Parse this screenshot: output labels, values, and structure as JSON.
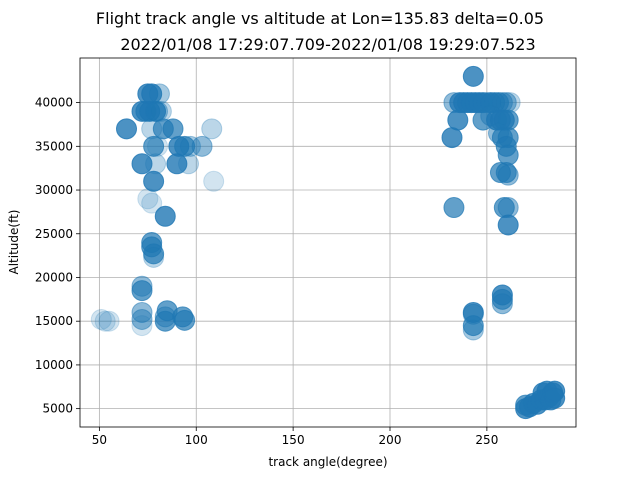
{
  "chart_data": {
    "type": "scatter",
    "title": "Flight track angle vs altitude at Lon=135.83 delta=0.05",
    "subtitle": "2022/01/08 17:29:07.709-2022/01/08 19:29:07.523",
    "xlabel": "track angle(degree)",
    "ylabel": "Altitude(ft)",
    "xlim": [
      40,
      296
    ],
    "ylim": [
      2900,
      45100
    ],
    "x_ticks": [
      50,
      100,
      150,
      200,
      250
    ],
    "y_ticks": [
      5000,
      10000,
      15000,
      20000,
      25000,
      30000,
      35000,
      40000
    ],
    "grid": true,
    "marker_color": "#1f77b4",
    "points": [
      {
        "x": 51,
        "y": 15200,
        "a": 0.2
      },
      {
        "x": 53,
        "y": 15000,
        "a": 0.2
      },
      {
        "x": 55,
        "y": 15000,
        "a": 0.2
      },
      {
        "x": 64,
        "y": 37000,
        "a": 0.8
      },
      {
        "x": 72,
        "y": 39000,
        "a": 0.8
      },
      {
        "x": 74,
        "y": 39000,
        "a": 0.7
      },
      {
        "x": 75,
        "y": 41000,
        "a": 0.8
      },
      {
        "x": 77,
        "y": 41000,
        "a": 0.8
      },
      {
        "x": 76,
        "y": 39000,
        "a": 0.8
      },
      {
        "x": 79,
        "y": 39000,
        "a": 0.8
      },
      {
        "x": 81,
        "y": 41000,
        "a": 0.4
      },
      {
        "x": 80,
        "y": 39000,
        "a": 0.4
      },
      {
        "x": 82,
        "y": 39000,
        "a": 0.3
      },
      {
        "x": 83,
        "y": 37000,
        "a": 0.7
      },
      {
        "x": 77,
        "y": 37000,
        "a": 0.3
      },
      {
        "x": 78,
        "y": 35000,
        "a": 0.7
      },
      {
        "x": 80,
        "y": 35000,
        "a": 0.2
      },
      {
        "x": 79,
        "y": 33000,
        "a": 0.3
      },
      {
        "x": 72,
        "y": 33000,
        "a": 0.8
      },
      {
        "x": 88,
        "y": 37000,
        "a": 0.7
      },
      {
        "x": 91,
        "y": 35000,
        "a": 0.8
      },
      {
        "x": 94,
        "y": 35000,
        "a": 0.7
      },
      {
        "x": 96,
        "y": 33000,
        "a": 0.3
      },
      {
        "x": 97,
        "y": 35000,
        "a": 0.4
      },
      {
        "x": 90,
        "y": 33000,
        "a": 0.8
      },
      {
        "x": 103,
        "y": 35000,
        "a": 0.5
      },
      {
        "x": 108,
        "y": 37000,
        "a": 0.3
      },
      {
        "x": 109,
        "y": 31000,
        "a": 0.2
      },
      {
        "x": 78,
        "y": 31000,
        "a": 0.8
      },
      {
        "x": 75,
        "y": 29000,
        "a": 0.2
      },
      {
        "x": 77,
        "y": 28500,
        "a": 0.2
      },
      {
        "x": 84,
        "y": 27000,
        "a": 0.8
      },
      {
        "x": 77,
        "y": 24000,
        "a": 0.7
      },
      {
        "x": 77,
        "y": 23500,
        "a": 0.7
      },
      {
        "x": 78,
        "y": 22700,
        "a": 0.7
      },
      {
        "x": 78,
        "y": 22300,
        "a": 0.3
      },
      {
        "x": 72,
        "y": 19000,
        "a": 0.5
      },
      {
        "x": 72,
        "y": 18500,
        "a": 0.7
      },
      {
        "x": 72,
        "y": 16000,
        "a": 0.5
      },
      {
        "x": 72,
        "y": 15200,
        "a": 0.5
      },
      {
        "x": 72,
        "y": 14500,
        "a": 0.2
      },
      {
        "x": 84,
        "y": 15000,
        "a": 0.7
      },
      {
        "x": 84,
        "y": 15500,
        "a": 0.5
      },
      {
        "x": 85,
        "y": 16200,
        "a": 0.7
      },
      {
        "x": 93,
        "y": 15500,
        "a": 0.7
      },
      {
        "x": 94,
        "y": 15100,
        "a": 0.7
      },
      {
        "x": 232,
        "y": 36000,
        "a": 0.8
      },
      {
        "x": 233,
        "y": 28000,
        "a": 0.7
      },
      {
        "x": 233,
        "y": 40000,
        "a": 0.5
      },
      {
        "x": 235,
        "y": 38000,
        "a": 0.8
      },
      {
        "x": 236,
        "y": 40000,
        "a": 0.8
      },
      {
        "x": 238,
        "y": 40000,
        "a": 0.8
      },
      {
        "x": 240,
        "y": 40000,
        "a": 0.8
      },
      {
        "x": 242,
        "y": 40000,
        "a": 0.8
      },
      {
        "x": 243,
        "y": 43000,
        "a": 0.8
      },
      {
        "x": 244,
        "y": 40000,
        "a": 0.8
      },
      {
        "x": 246,
        "y": 40000,
        "a": 0.8
      },
      {
        "x": 248,
        "y": 40000,
        "a": 0.8
      },
      {
        "x": 250,
        "y": 40000,
        "a": 0.5
      },
      {
        "x": 252,
        "y": 40000,
        "a": 0.8
      },
      {
        "x": 254,
        "y": 40000,
        "a": 0.7
      },
      {
        "x": 256,
        "y": 40000,
        "a": 0.7
      },
      {
        "x": 258,
        "y": 40000,
        "a": 0.5
      },
      {
        "x": 260,
        "y": 40000,
        "a": 0.5
      },
      {
        "x": 262,
        "y": 40000,
        "a": 0.3
      },
      {
        "x": 248,
        "y": 38000,
        "a": 0.7
      },
      {
        "x": 252,
        "y": 38500,
        "a": 0.5
      },
      {
        "x": 255,
        "y": 38000,
        "a": 0.8
      },
      {
        "x": 257,
        "y": 38000,
        "a": 0.8
      },
      {
        "x": 259,
        "y": 38000,
        "a": 0.8
      },
      {
        "x": 261,
        "y": 38000,
        "a": 0.7
      },
      {
        "x": 256,
        "y": 36500,
        "a": 0.5
      },
      {
        "x": 258,
        "y": 36000,
        "a": 0.7
      },
      {
        "x": 261,
        "y": 36000,
        "a": 0.7
      },
      {
        "x": 260,
        "y": 35000,
        "a": 0.7
      },
      {
        "x": 261,
        "y": 34000,
        "a": 0.7
      },
      {
        "x": 257,
        "y": 32000,
        "a": 0.7
      },
      {
        "x": 260,
        "y": 32000,
        "a": 0.7
      },
      {
        "x": 261,
        "y": 31700,
        "a": 0.5
      },
      {
        "x": 259,
        "y": 28000,
        "a": 0.7
      },
      {
        "x": 261,
        "y": 28000,
        "a": 0.5
      },
      {
        "x": 261,
        "y": 26000,
        "a": 0.8
      },
      {
        "x": 243,
        "y": 16000,
        "a": 0.8
      },
      {
        "x": 243,
        "y": 15800,
        "a": 0.5
      },
      {
        "x": 243,
        "y": 14500,
        "a": 0.7
      },
      {
        "x": 243,
        "y": 14000,
        "a": 0.4
      },
      {
        "x": 258,
        "y": 18000,
        "a": 0.8
      },
      {
        "x": 258,
        "y": 17500,
        "a": 0.7
      },
      {
        "x": 258,
        "y": 17000,
        "a": 0.5
      },
      {
        "x": 270,
        "y": 5000,
        "a": 0.8
      },
      {
        "x": 270,
        "y": 5400,
        "a": 0.7
      },
      {
        "x": 272,
        "y": 5200,
        "a": 0.8
      },
      {
        "x": 274,
        "y": 5600,
        "a": 0.8
      },
      {
        "x": 276,
        "y": 5500,
        "a": 0.8
      },
      {
        "x": 278,
        "y": 6000,
        "a": 0.8
      },
      {
        "x": 279,
        "y": 6800,
        "a": 0.8
      },
      {
        "x": 280,
        "y": 6000,
        "a": 0.8
      },
      {
        "x": 281,
        "y": 7000,
        "a": 0.8
      },
      {
        "x": 282,
        "y": 6300,
        "a": 0.8
      },
      {
        "x": 283,
        "y": 6000,
        "a": 0.8
      },
      {
        "x": 284,
        "y": 6800,
        "a": 0.8
      },
      {
        "x": 285,
        "y": 7000,
        "a": 0.8
      },
      {
        "x": 285,
        "y": 6200,
        "a": 0.8
      }
    ]
  }
}
